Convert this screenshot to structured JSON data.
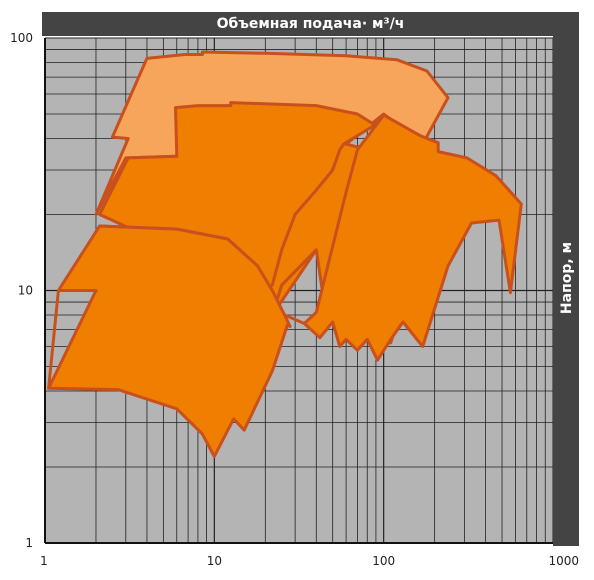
{
  "chart_data": {
    "type": "area",
    "title": "Объемная подача· м³/ч",
    "xlabel": "Объемная подача· м³/ч",
    "ylabel": "Напор, м",
    "xscale": "log",
    "yscale": "log",
    "xlim": [
      1,
      1000
    ],
    "ylim": [
      1,
      100
    ],
    "x_ticks": [
      "1",
      "10",
      "100",
      "1000"
    ],
    "y_ticks": [
      "1",
      "10",
      "100"
    ],
    "grid": true,
    "colors": {
      "plot_background": "#b4b4b4",
      "grid": "#222222",
      "fill_light": "#f7a55a",
      "fill_main": "#f07e00",
      "outline": "#c8501c",
      "bars": "#444444"
    },
    "regions": [
      {
        "fill": "light",
        "points": [
          [
            4,
            83
          ],
          [
            6.7,
            86
          ],
          [
            8.5,
            86
          ],
          [
            8.5,
            88
          ],
          [
            20,
            87
          ],
          [
            60,
            85
          ],
          [
            120,
            82
          ],
          [
            180,
            74
          ],
          [
            240,
            58
          ],
          [
            170,
            38
          ],
          [
            100,
            50
          ],
          [
            60,
            38
          ],
          [
            30,
            33.5
          ],
          [
            6,
            34
          ],
          [
            3,
            33.5
          ],
          [
            2,
            20
          ],
          [
            3.1,
            40
          ],
          [
            2.5,
            40.5
          ]
        ]
      },
      {
        "fill": "main",
        "points": [
          [
            5.9,
            53
          ],
          [
            8,
            54
          ],
          [
            12.5,
            54
          ],
          [
            12.5,
            55.5
          ],
          [
            40,
            54
          ],
          [
            70,
            50
          ],
          [
            100,
            43
          ],
          [
            170,
            37
          ],
          [
            100,
            47.5
          ],
          [
            58,
            38
          ],
          [
            50,
            30
          ],
          [
            22,
            10.5
          ],
          [
            50,
            30
          ],
          [
            58,
            38
          ],
          [
            25,
            10.5
          ],
          [
            40,
            14.5
          ],
          [
            22,
            8
          ],
          [
            20,
            10
          ],
          [
            2.1,
            20
          ],
          [
            3.1,
            33.5
          ],
          [
            6,
            34
          ]
        ]
      },
      {
        "fill": "main",
        "points": [
          [
            2.1,
            18
          ],
          [
            6,
            17.5
          ],
          [
            12,
            16
          ],
          [
            18,
            12.5
          ],
          [
            21,
            9.2
          ],
          [
            22,
            8
          ],
          [
            25,
            10.5
          ],
          [
            40,
            14.5
          ],
          [
            45,
            8.5
          ],
          [
            62,
            7.2
          ],
          [
            72,
            6.5
          ],
          [
            80,
            7
          ],
          [
            92,
            6.2
          ],
          [
            110,
            6.2
          ],
          [
            130,
            8.8
          ],
          [
            150,
            10.5
          ],
          [
            180,
            11.8
          ],
          [
            180,
            13
          ],
          [
            170,
            20
          ],
          [
            210,
            22
          ],
          [
            250,
            17.5
          ],
          [
            180,
            25.5
          ],
          [
            110,
            40
          ],
          [
            70,
            37
          ],
          [
            60,
            38
          ],
          [
            58,
            38
          ],
          [
            55,
            36
          ],
          [
            50,
            30
          ],
          [
            40,
            25
          ],
          [
            30,
            20
          ],
          [
            25,
            14.5
          ],
          [
            22,
            10.5
          ],
          [
            20,
            10
          ]
        ]
      },
      {
        "fill": "main",
        "points": [
          [
            100,
            49.5
          ],
          [
            165,
            41
          ],
          [
            210,
            38.5
          ],
          [
            210,
            35.5
          ],
          [
            310,
            33.5
          ],
          [
            460,
            28.5
          ],
          [
            650,
            22
          ],
          [
            560,
            9.8
          ],
          [
            480,
            19
          ],
          [
            330,
            18.5
          ],
          [
            240,
            12.5
          ],
          [
            170,
            6
          ],
          [
            130,
            7.5
          ],
          [
            110,
            6.4
          ],
          [
            92,
            5.3
          ],
          [
            80,
            6.4
          ],
          [
            70,
            5.8
          ],
          [
            60,
            6.4
          ],
          [
            55,
            6
          ],
          [
            50,
            7.5
          ],
          [
            42,
            6.5
          ],
          [
            34,
            7.4
          ],
          [
            26,
            8
          ],
          [
            24,
            7.2
          ],
          [
            26,
            8
          ],
          [
            34,
            7.4
          ],
          [
            40,
            8.2
          ],
          [
            60,
            24.5
          ],
          [
            70,
            36
          ],
          [
            100,
            49.5
          ]
        ]
      },
      {
        "fill": "main",
        "points": [
          [
            1.05,
            4.1
          ],
          [
            1.2,
            10
          ],
          [
            2.0,
            10
          ],
          [
            1.05,
            4.1
          ],
          [
            2.7,
            4.05
          ],
          [
            6,
            3.4
          ],
          [
            8.5,
            2.7
          ],
          [
            10,
            2.2
          ],
          [
            13,
            3.1
          ],
          [
            15,
            2.8
          ],
          [
            22,
            4.8
          ],
          [
            27,
            7.3
          ],
          [
            28,
            7.2
          ],
          [
            26,
            8
          ],
          [
            22,
            10
          ],
          [
            18,
            12.5
          ],
          [
            12,
            16
          ],
          [
            6,
            17.5
          ],
          [
            2.1,
            18
          ],
          [
            1.2,
            10
          ]
        ]
      }
    ]
  }
}
